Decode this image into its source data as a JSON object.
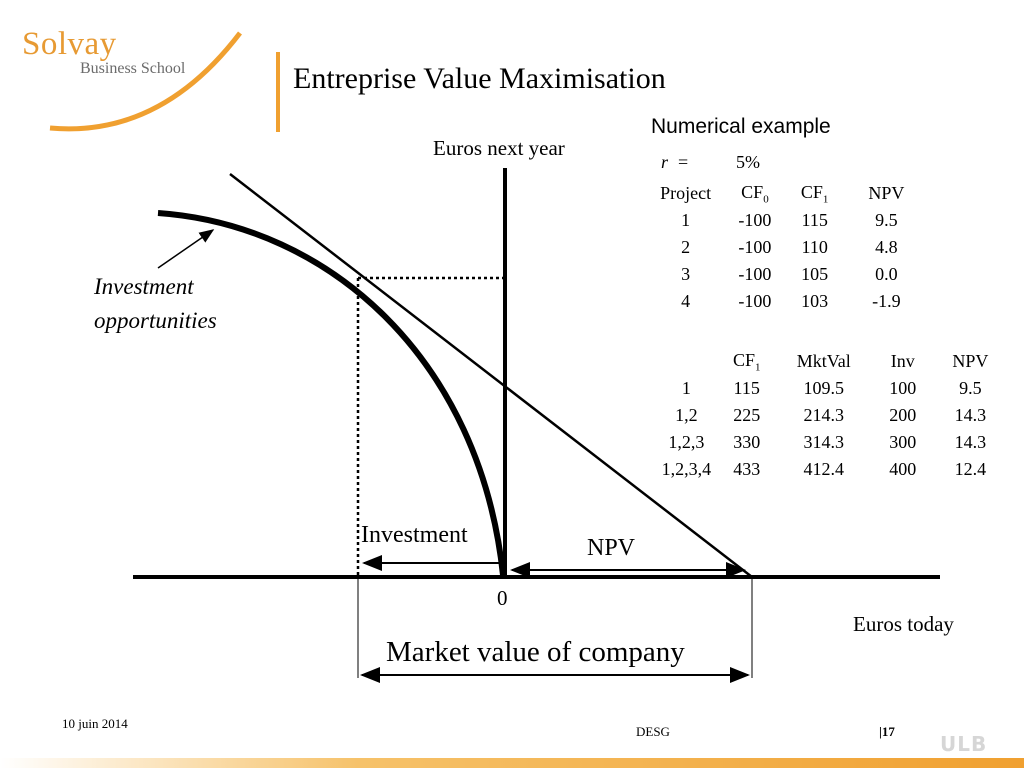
{
  "header": {
    "logo_main": "Solvay",
    "logo_sub": "Business School",
    "title": "Entreprise Value Maximisation"
  },
  "diagram": {
    "y_axis_label": "Euros next year",
    "x_axis_label": "Euros today",
    "origin_label": "0",
    "curve_label_line1": "Investment",
    "curve_label_line2": "opportunities",
    "investment_label": "Investment",
    "npv_label": "NPV",
    "market_value_label": "Market value of company"
  },
  "example": {
    "title": "Numerical example",
    "r_symbol": "r",
    "r_equals": "=",
    "r_value": "5%",
    "table1": {
      "headers": [
        {
          "text": "Project",
          "sub": ""
        },
        {
          "text": "CF",
          "sub": "0"
        },
        {
          "text": "CF",
          "sub": "1"
        },
        {
          "text": "NPV",
          "sub": ""
        }
      ],
      "rows": [
        [
          "1",
          "-100",
          "115",
          "9.5"
        ],
        [
          "2",
          "-100",
          "110",
          "4.8"
        ],
        [
          "3",
          "-100",
          "105",
          "0.0"
        ],
        [
          "4",
          "-100",
          "103",
          "-1.9"
        ]
      ]
    },
    "table2": {
      "headers": [
        {
          "text": "",
          "sub": ""
        },
        {
          "text": "CF",
          "sub": "1"
        },
        {
          "text": "MktVal",
          "sub": ""
        },
        {
          "text": "Inv",
          "sub": ""
        },
        {
          "text": "NPV",
          "sub": ""
        }
      ],
      "rows": [
        [
          "1",
          "115",
          "109.5",
          "100",
          "9.5"
        ],
        [
          "1,2",
          "225",
          "214.3",
          "200",
          "14.3"
        ],
        [
          "1,2,3",
          "330",
          "314.3",
          "300",
          "14.3"
        ],
        [
          "1,2,3,4",
          "433",
          "412.4",
          "400",
          "12.4"
        ]
      ]
    }
  },
  "footer": {
    "date": "10 juin 2014",
    "center": "DESG",
    "page": "|17",
    "logo": "ULB"
  },
  "colors": {
    "accent": "#f0a030",
    "logo_orange": "#e79a33"
  }
}
